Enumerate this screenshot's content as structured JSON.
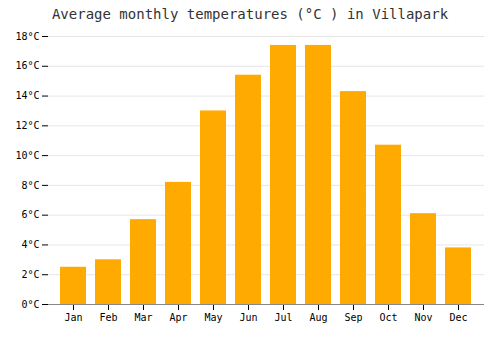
{
  "chart_data": {
    "type": "bar",
    "title": "Average monthly temperatures (°C ) in Villapark",
    "categories": [
      "Jan",
      "Feb",
      "Mar",
      "Apr",
      "May",
      "Jun",
      "Jul",
      "Aug",
      "Sep",
      "Oct",
      "Nov",
      "Dec"
    ],
    "values": [
      2.5,
      3.0,
      5.7,
      8.2,
      13.0,
      15.4,
      17.4,
      17.4,
      14.3,
      10.7,
      6.1,
      3.8
    ],
    "color": "#FFAA00",
    "ylim": [
      0,
      18
    ],
    "yticks": [
      {
        "value": 0,
        "label": "0°C"
      },
      {
        "value": 2,
        "label": "2°C"
      },
      {
        "value": 4,
        "label": "4°C"
      },
      {
        "value": 6,
        "label": "6°C"
      },
      {
        "value": 8,
        "label": "8°C"
      },
      {
        "value": 10,
        "label": "10°C"
      },
      {
        "value": 12,
        "label": "12°C"
      },
      {
        "value": 14,
        "label": "14°C"
      },
      {
        "value": 16,
        "label": "16°C"
      },
      {
        "value": 18,
        "label": "18°C"
      }
    ],
    "grid": true
  }
}
